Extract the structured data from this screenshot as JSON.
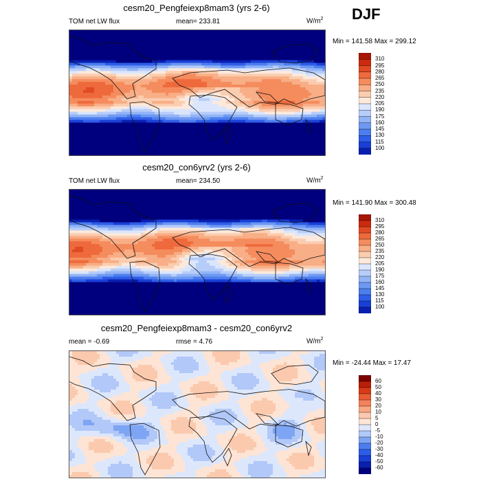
{
  "season": "DJF",
  "colors": {
    "abs": [
      "#00007f",
      "#0a1fb0",
      "#1a3fd6",
      "#2e5ee8",
      "#4c7eef",
      "#6e98f2",
      "#92b4f6",
      "#b7cdf9",
      "#dbe6fc",
      "#fde9dc",
      "#fbcdb0",
      "#f8ae86",
      "#f58c5e",
      "#ee6a3c",
      "#e04a24",
      "#cc2a10",
      "#a81606",
      "#7f0000"
    ],
    "diff": [
      "#00007f",
      "#0a1fb0",
      "#1a3fd6",
      "#2e5ee8",
      "#4c7eef",
      "#7ea4f4",
      "#b1c8f8",
      "#dde7fc",
      "#fde4d4",
      "#fbc9ad",
      "#f8a883",
      "#f4825a",
      "#ea5c34",
      "#d83a18",
      "#b81e08",
      "#7f0000"
    ]
  },
  "panels": [
    {
      "title": "cesm20_Pengfeiexp8mam3 (yrs 2-6)",
      "left_label": "TOM net LW flux",
      "center_label": "mean= 233.81",
      "units_base": "W/m",
      "units_exp": "2",
      "minmax": "Min = 141.58 Max = 299.12"
    },
    {
      "title": "cesm20_con6yrv2 (yrs 2-6)",
      "left_label": "TOM net LW flux",
      "center_label": "mean= 234.50",
      "units_base": "W/m",
      "units_exp": "2",
      "minmax": "Min = 141.90 Max = 300.48"
    },
    {
      "title": "cesm20_Pengfeiexp8mam3 - cesm20_con6yrv2",
      "left_label": "mean =  -0.69",
      "center_label": "rmse =   4.76",
      "units_base": "W/m",
      "units_exp": "2",
      "minmax": "Min = -24.44 Max =  17.47"
    }
  ],
  "chart_data": [
    {
      "type": "heatmap",
      "title": "cesm20_Pengfeiexp8mam3 (yrs 2-6)",
      "variable": "TOM net LW flux",
      "mean": 233.81,
      "min": 141.58,
      "max": 299.12,
      "colorbar_levels": [
        "310",
        "295",
        "280",
        "265",
        "250",
        "235",
        "220",
        "205",
        "190",
        "175",
        "160",
        "145",
        "130",
        "115",
        "100"
      ]
    },
    {
      "type": "heatmap",
      "title": "cesm20_con6yrv2 (yrs 2-6)",
      "variable": "TOM net LW flux",
      "mean": 234.5,
      "min": 141.9,
      "max": 300.48,
      "colorbar_levels": [
        "310",
        "295",
        "280",
        "265",
        "250",
        "235",
        "220",
        "205",
        "190",
        "175",
        "160",
        "145",
        "130",
        "115",
        "100"
      ]
    },
    {
      "type": "heatmap",
      "title": "cesm20_Pengfeiexp8mam3 - cesm20_con6yrv2",
      "mean": -0.69,
      "rmse": 4.76,
      "min": -24.44,
      "max": 17.47,
      "colorbar_levels": [
        "60",
        "50",
        "40",
        "30",
        "20",
        "10",
        "5",
        "0",
        "-5",
        "-10",
        "-20",
        "-30",
        "-40",
        "-50",
        "-60"
      ]
    }
  ]
}
